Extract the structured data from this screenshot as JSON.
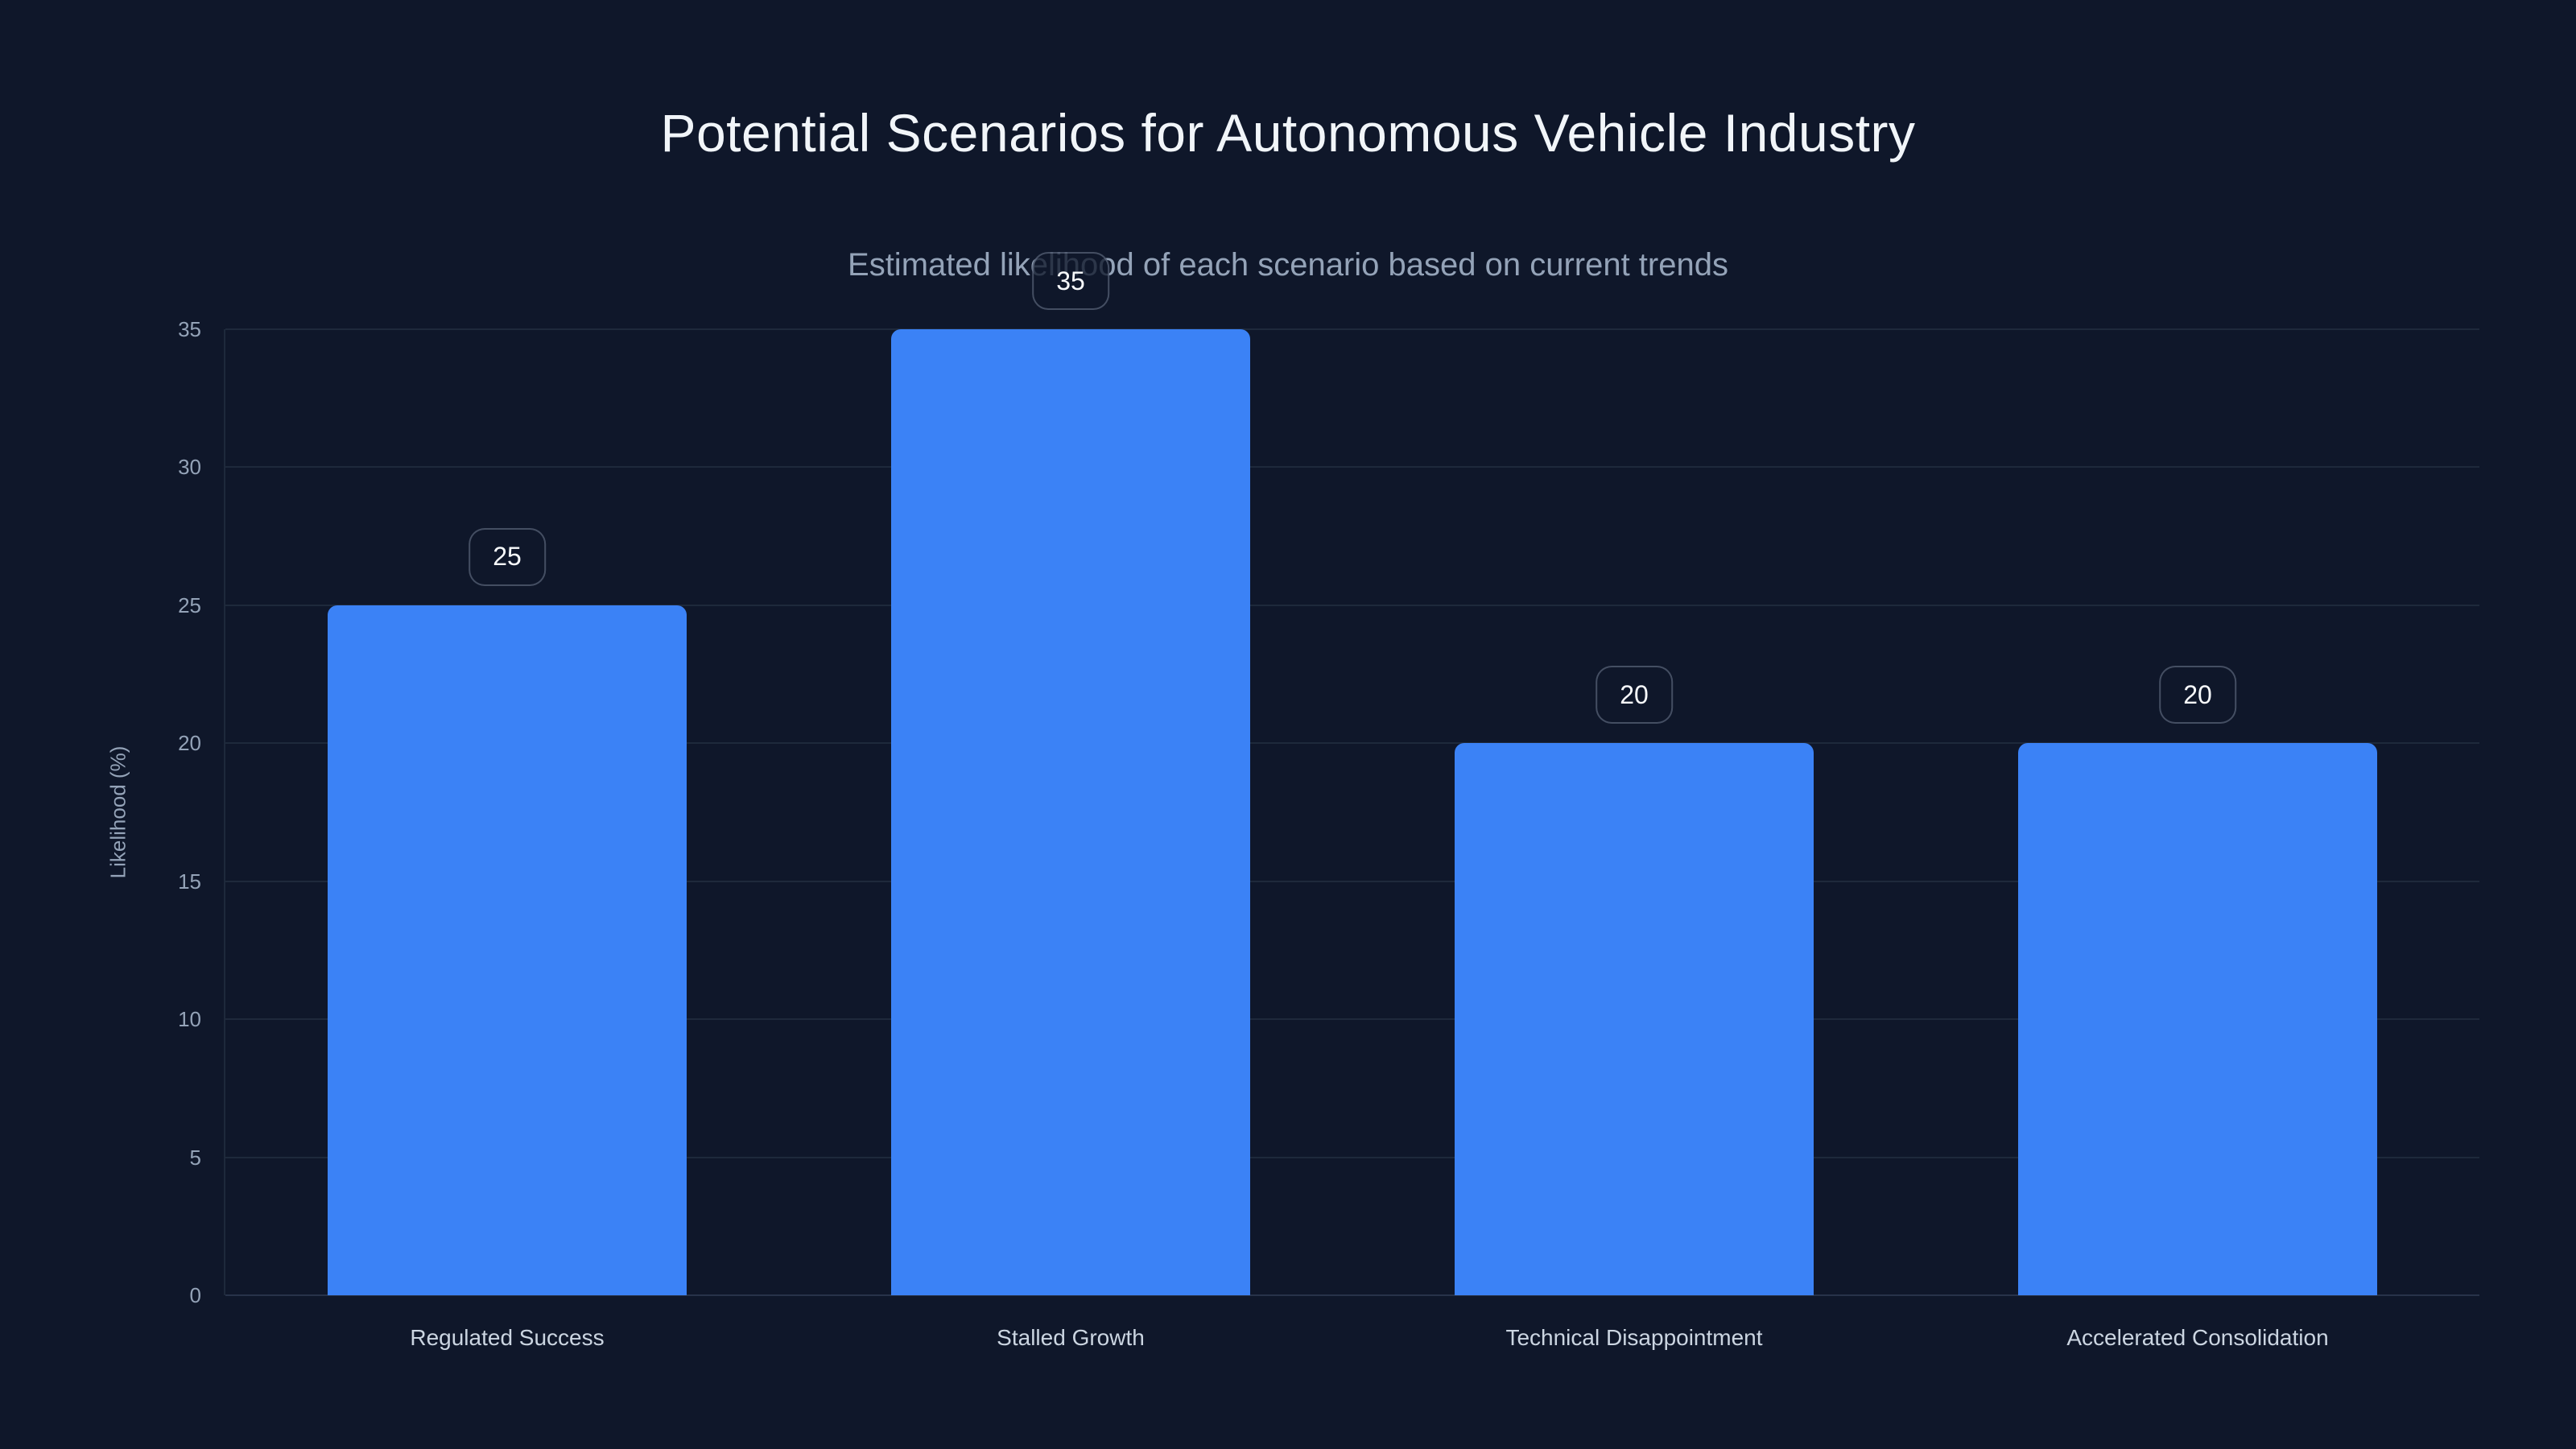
{
  "chart_data": {
    "type": "bar",
    "title": "Potential Scenarios for Autonomous Vehicle Industry",
    "subtitle": "Estimated likelihood of each scenario based on current trends",
    "categories": [
      "Regulated Success",
      "Stalled Growth",
      "Technical Disappointment",
      "Accelerated Consolidation"
    ],
    "values": [
      25,
      35,
      20,
      20
    ],
    "value_labels": [
      "25",
      "35",
      "20",
      "20"
    ],
    "xlabel": "",
    "ylabel": "Likelihood (%)",
    "ylim": [
      0,
      35
    ],
    "yticks": [
      0,
      5,
      10,
      15,
      20,
      25,
      30,
      35
    ],
    "grid": "horizontal-only",
    "legend": "none",
    "colors": {
      "background": "#0f172a",
      "bar": "#3b82f6",
      "gridline": "#1e293b",
      "title": "#f1f5f9",
      "subtitle": "#94a3b8",
      "tick": "#94a3b8",
      "category_label": "#cbd5e1",
      "badge_text": "#f8fafc",
      "badge_bg": "rgba(15,23,42,0.78)",
      "badge_border": "rgba(148,163,184,0.4)"
    }
  }
}
